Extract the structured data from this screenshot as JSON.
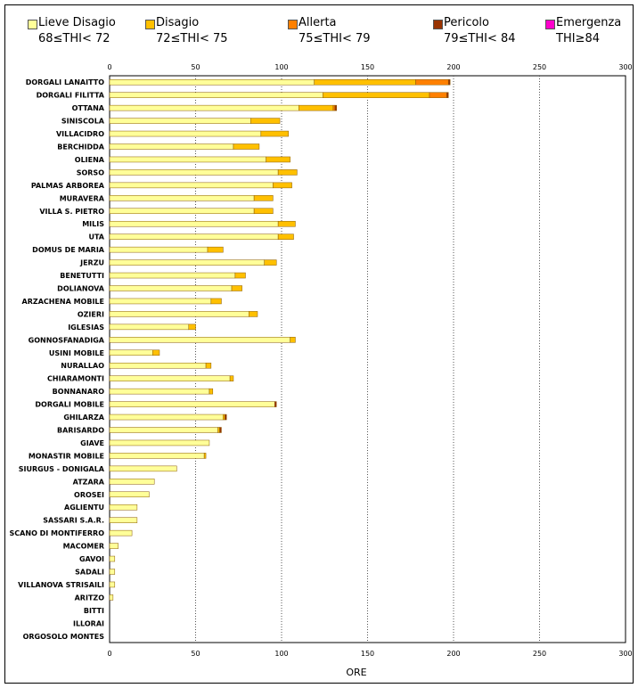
{
  "chart_data": {
    "type": "bar",
    "orientation": "horizontal",
    "stacked": true,
    "xlabel": "ORE",
    "xlim": [
      0,
      300
    ],
    "xticks": [
      "0",
      "50",
      "100",
      "150",
      "200",
      "250",
      "300"
    ],
    "grid": true,
    "legend_position": "top",
    "legend": [
      {
        "name": "Lieve Disagio",
        "range": "68≤THI< 72",
        "color": "#ffff99"
      },
      {
        "name": "Disagio",
        "range": "72≤THI< 75",
        "color": "#ffc000"
      },
      {
        "name": "Allerta",
        "range": "75≤THI< 79",
        "color": "#ff8000"
      },
      {
        "name": "Pericolo",
        "range": "79≤THI< 84",
        "color": "#993300"
      },
      {
        "name": "Emergenza",
        "range": "THI≥84",
        "color": "#ff00cc"
      }
    ],
    "categories": [
      "DORGALI LANAITTO",
      "DORGALI FILITTA",
      "OTTANA",
      "SINISCOLA",
      "VILLACIDRO",
      "BERCHIDDA",
      "OLIENA",
      "SORSO",
      "PALMAS ARBOREA",
      "MURAVERA",
      "VILLA S. PIETRO",
      "MILIS",
      "UTA",
      "DOMUS DE MARIA",
      "JERZU",
      "BENETUTTI",
      "DOLIANOVA",
      "ARZACHENA MOBILE",
      "OZIERI",
      "IGLESIAS",
      "GONNOSFANADIGA",
      "USINI MOBILE",
      "NURALLAO",
      "CHIARAMONTI",
      "BONNANARO",
      "DORGALI MOBILE",
      "GHILARZA",
      "BARISARDO",
      "GIAVE",
      "MONASTIR MOBILE",
      "SIURGUS - DONIGALA",
      "ATZARA",
      "OROSEI",
      "AGLIENTU",
      "SASSARI S.A.R.",
      "SCANO DI MONTIFERRO",
      "MACOMER",
      "GAVOI",
      "SADALI",
      "VILLANOVA STRISAILI",
      "ARITZO",
      "BITTI",
      "ILLORAI",
      "ORGOSOLO MONTES"
    ],
    "series": [
      {
        "name": "Lieve Disagio",
        "values": [
          119,
          124,
          110,
          82,
          88,
          72,
          91,
          98,
          95,
          84,
          84,
          98,
          98,
          57,
          90,
          73,
          71,
          59,
          81,
          46,
          105,
          25,
          56,
          70,
          58,
          96,
          66,
          63,
          58,
          55,
          39,
          26,
          23,
          16,
          16,
          13,
          5,
          3,
          3,
          3,
          2,
          0,
          0,
          0
        ]
      },
      {
        "name": "Disagio",
        "values": [
          59,
          62,
          20,
          17,
          16,
          15,
          14,
          11,
          11,
          11,
          11,
          10,
          9,
          9,
          7,
          6,
          6,
          6,
          5,
          4,
          3,
          4,
          3,
          2,
          2,
          0,
          1,
          1,
          0,
          1,
          0,
          0,
          0,
          0,
          0,
          0,
          0,
          0,
          0,
          0,
          0,
          0,
          0,
          0
        ]
      },
      {
        "name": "Allerta",
        "values": [
          19,
          10,
          1,
          0,
          0,
          0,
          0,
          0,
          0,
          0,
          0,
          0,
          0,
          0,
          0,
          0,
          0,
          0,
          0,
          0,
          0,
          0,
          0,
          0,
          0,
          0,
          0,
          0,
          0,
          0,
          0,
          0,
          0,
          0,
          0,
          0,
          0,
          0,
          0,
          0,
          0,
          0,
          0,
          0
        ]
      },
      {
        "name": "Pericolo",
        "values": [
          1,
          1,
          1,
          0,
          0,
          0,
          0,
          0,
          0,
          0,
          0,
          0,
          0,
          0,
          0,
          0,
          0,
          0,
          0,
          0,
          0,
          0,
          0,
          0,
          0,
          1,
          1,
          1,
          0,
          0,
          0,
          0,
          0,
          0,
          0,
          0,
          0,
          0,
          0,
          0,
          0,
          0,
          0,
          0
        ]
      },
      {
        "name": "Emergenza",
        "values": [
          0,
          0,
          0,
          0,
          0,
          0,
          0,
          0,
          0,
          0,
          0,
          0,
          0,
          0,
          0,
          0,
          0,
          0,
          0,
          0,
          0,
          0,
          0,
          0,
          0,
          0,
          0,
          0,
          0,
          0,
          0,
          0,
          0,
          0,
          0,
          0,
          0,
          0,
          0,
          0,
          0,
          0,
          0,
          0
        ]
      }
    ]
  }
}
